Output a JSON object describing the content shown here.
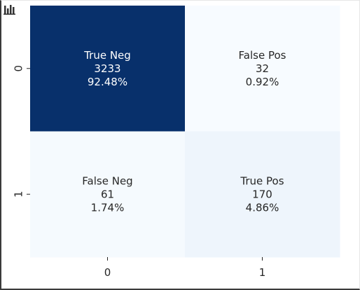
{
  "chart_data": {
    "type": "heatmap",
    "x_ticks": [
      "0",
      "1"
    ],
    "y_ticks": [
      "0",
      "1"
    ],
    "cells": [
      [
        {
          "label": "True Neg",
          "count": "3233",
          "percent": "92.48%",
          "value": 3233
        },
        {
          "label": "False Pos",
          "count": "32",
          "percent": "0.92%",
          "value": 32
        }
      ],
      [
        {
          "label": "False Neg",
          "count": "61",
          "percent": "1.74%",
          "value": 61
        },
        {
          "label": "True Pos",
          "count": "170",
          "percent": "4.86%",
          "value": 170
        }
      ]
    ],
    "colormap": {
      "low": "#f7fbff",
      "high": "#08306b"
    },
    "colorbar": false,
    "grid": false
  },
  "colors": {
    "text_dark": "#262626",
    "text_light": "#ffffff"
  },
  "icons": {
    "toolbar": "bar-chart-icon"
  }
}
